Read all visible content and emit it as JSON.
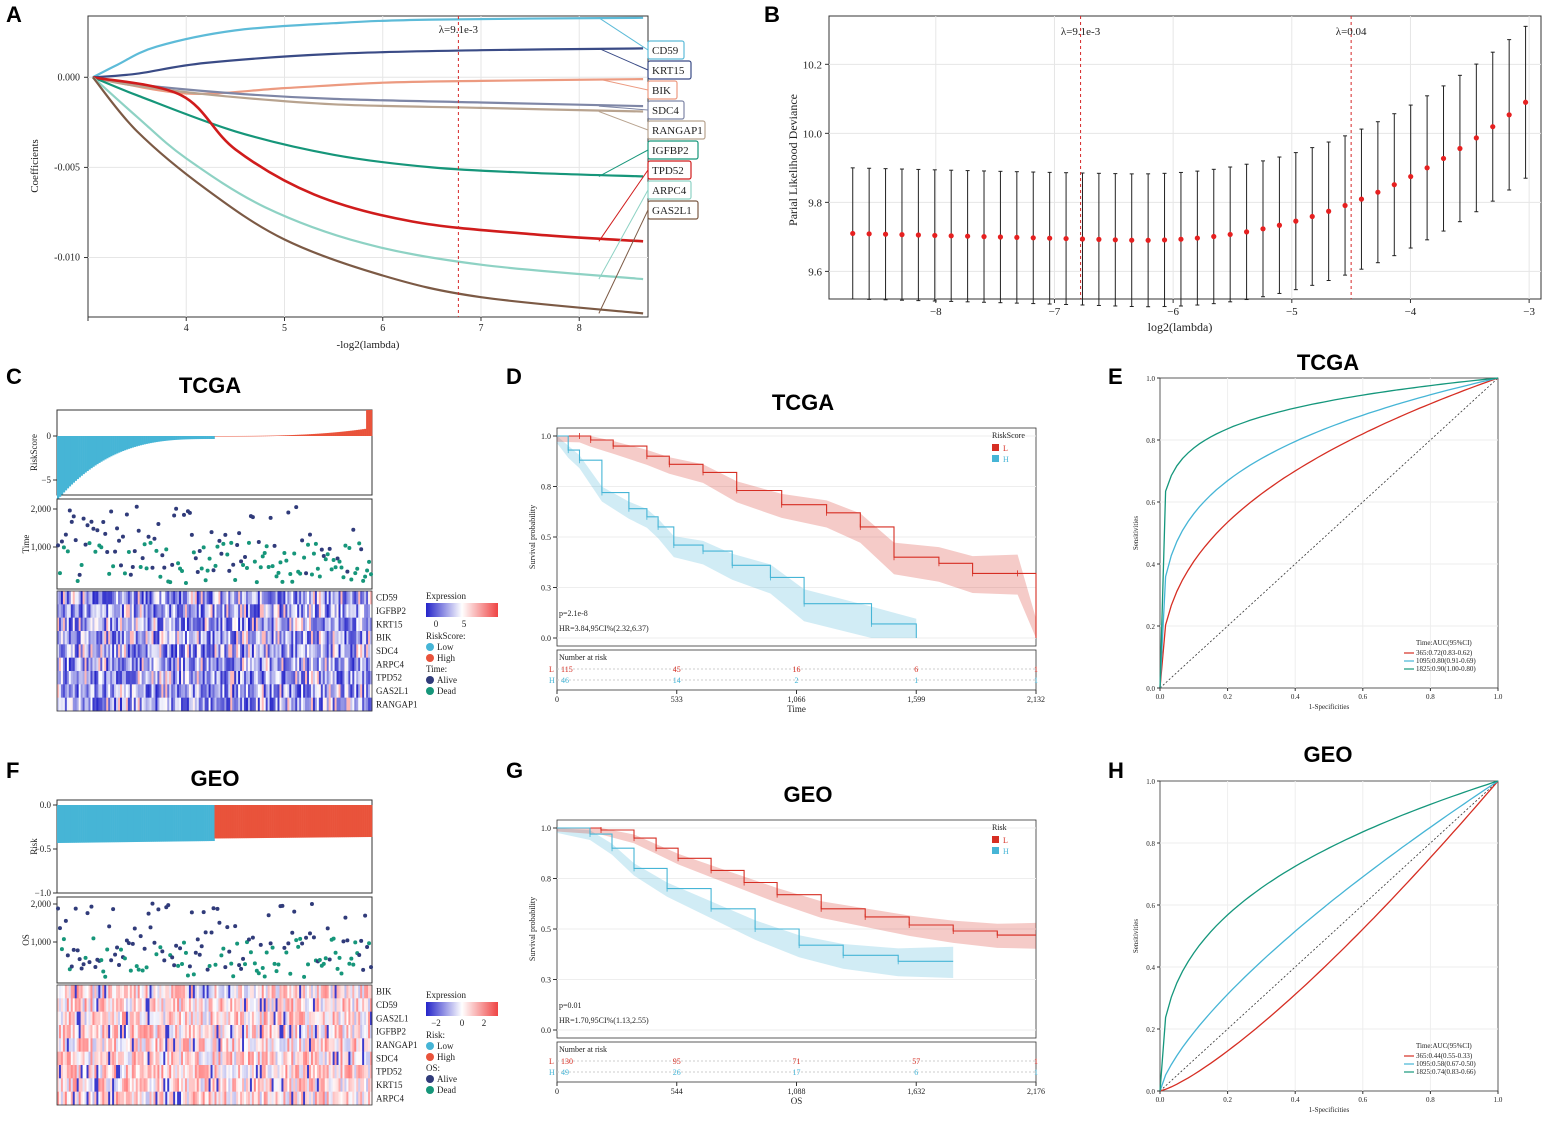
{
  "colors": {
    "red": "#d62e23",
    "blue": "#46b5d6",
    "teal": "#15977c",
    "navy": "#2a3f7d",
    "heatLow": "#2424c9",
    "heatHigh": "#ef4444",
    "lowRisk": "#46b5d6",
    "highRisk": "#e9533b",
    "alive": "#303b7a",
    "dead": "#16967a"
  },
  "panelA": {
    "letter": "A",
    "xlabel": "-log2(lambda)",
    "ylabel": "Coefficients",
    "vline_label": "λ=9.1e-3",
    "xticks": [
      "4",
      "5",
      "6",
      "7",
      "8"
    ],
    "yticks": [
      "0.000",
      "-0.005",
      "-0.010"
    ],
    "genes": [
      "CD59",
      "KRT15",
      "BIK",
      "SDC4",
      "RANGAP1",
      "IGFBP2",
      "TPD52",
      "ARPC4",
      "GAS2L1"
    ]
  },
  "panelB": {
    "letter": "B",
    "xlabel": "log2(lambda)",
    "ylabel": "Parial Likelihood Deviance",
    "vline1_label": "λ=9.1e-3",
    "vline2_label": "λ=0.04",
    "xticks": [
      "−8",
      "−7",
      "−6",
      "−5",
      "−4",
      "−3"
    ],
    "yticks": [
      "9.6",
      "9.8",
      "10.0",
      "10.2"
    ]
  },
  "panelC": {
    "letter": "C",
    "title": "TCGA",
    "risk_label": "RiskScore",
    "time_label": "Time",
    "risk_ticks": [
      "0",
      "−5"
    ],
    "time_ticks": [
      "2,000",
      "1,000"
    ],
    "genes": [
      "CD59",
      "IGFBP2",
      "KRT15",
      "BIK",
      "SDC4",
      "ARPC4",
      "TPD52",
      "GAS2L1",
      "RANGAP1"
    ],
    "legend": {
      "expression": "Expression",
      "scale": [
        "0",
        "5"
      ],
      "group_title": "RiskScore:",
      "group": [
        "Low",
        "High"
      ],
      "status_title": "Time:",
      "status": [
        "Alive",
        "Dead"
      ]
    }
  },
  "panelD": {
    "letter": "D",
    "title": "TCGA",
    "ylabel": "Survival probability",
    "xlabel": "Time",
    "legend_title": "RiskScore",
    "legend": [
      "L",
      "H"
    ],
    "pvalue": "p=2.1e-8",
    "hr": "HR=3.84,95CI%(2.32,6.37)",
    "yticks": [
      "1.0",
      "0.8",
      "0.5",
      "0.3",
      "0.0"
    ],
    "xticks": [
      "0",
      "533",
      "1,066",
      "1,599",
      "2,132"
    ],
    "risk_title": "Number at risk",
    "risk_rows": [
      {
        "label": "L",
        "values": [
          "115",
          "45",
          "16",
          "6",
          "1"
        ]
      },
      {
        "label": "H",
        "values": [
          "46",
          "14",
          "2",
          "1",
          "1"
        ]
      }
    ]
  },
  "panelE": {
    "letter": "E",
    "title": "TCGA",
    "xlabel": "1-Specificities",
    "ylabel": "Sensitivities",
    "ticks": [
      "0.0",
      "0.2",
      "0.4",
      "0.6",
      "0.8",
      "1.0"
    ],
    "legend_title": "Time:AUC(95%CI)",
    "legend": [
      "365:0.72(0.83-0.62)",
      "1095:0.80(0.91-0.69)",
      "1825:0.90(1.00-0.80)"
    ]
  },
  "panelF": {
    "letter": "F",
    "title": "GEO",
    "risk_label": "Risk",
    "time_label": "OS",
    "risk_ticks": [
      "0.0",
      "−0.5",
      "−1.0"
    ],
    "time_ticks": [
      "2,000",
      "1,000"
    ],
    "genes": [
      "BIK",
      "CD59",
      "GAS2L1",
      "IGFBP2",
      "RANGAP1",
      "SDC4",
      "TPD52",
      "KRT15",
      "ARPC4"
    ],
    "legend": {
      "expression": "Expression",
      "scale": [
        "−2",
        "0",
        "2"
      ],
      "group_title": "Risk:",
      "group": [
        "Low",
        "High"
      ],
      "status_title": "OS:",
      "status": [
        "Alive",
        "Dead"
      ]
    }
  },
  "panelG": {
    "letter": "G",
    "title": "GEO",
    "ylabel": "Survival probability",
    "xlabel": "OS",
    "legend_title": "Risk",
    "legend": [
      "L",
      "H"
    ],
    "pvalue": "p=0.01",
    "hr": "HR=1.70,95CI%(1.13,2.55)",
    "yticks": [
      "1.0",
      "0.8",
      "0.5",
      "0.3",
      "0.0"
    ],
    "xticks": [
      "0",
      "544",
      "1,088",
      "1,632",
      "2,176"
    ],
    "risk_title": "Number at risk",
    "risk_rows": [
      {
        "label": "L",
        "values": [
          "130",
          "95",
          "71",
          "57",
          "1"
        ]
      },
      {
        "label": "H",
        "values": [
          "49",
          "26",
          "17",
          "6",
          "1"
        ]
      }
    ]
  },
  "panelH": {
    "letter": "H",
    "title": "GEO",
    "xlabel": "1-Specificities",
    "ylabel": "Sensitivities",
    "ticks": [
      "0.0",
      "0.2",
      "0.4",
      "0.6",
      "0.8",
      "1.0"
    ],
    "legend_title": "Time:AUC(95%CI)",
    "legend": [
      "365:0.44(0.55-0.33)",
      "1095:0.58(0.67-0.50)",
      "1825:0.74(0.83-0.66)"
    ]
  },
  "chart_data": [
    {
      "panel": "A",
      "type": "line",
      "xlabel": "-log2(lambda)",
      "ylabel": "Coefficients",
      "xlim": [
        3,
        8.7
      ],
      "ylim": [
        -0.0133,
        0.0034
      ],
      "vline": 6.77,
      "series": [
        {
          "name": "CD59",
          "values": [
            [
              3.05,
              0
            ],
            [
              3.3,
              0.0007
            ],
            [
              3.7,
              0.0017
            ],
            [
              4.5,
              0.0026
            ],
            [
              5.5,
              0.003
            ],
            [
              6.5,
              0.0032
            ],
            [
              8.65,
              0.0033
            ]
          ]
        },
        {
          "name": "KRT15",
          "values": [
            [
              3.05,
              0
            ],
            [
              3.5,
              0.0002
            ],
            [
              4.2,
              0.0008
            ],
            [
              5.5,
              0.0013
            ],
            [
              7,
              0.0015
            ],
            [
              8.65,
              0.0016
            ]
          ]
        },
        {
          "name": "BIK",
          "values": [
            [
              3.05,
              0
            ],
            [
              4,
              -0.0009
            ],
            [
              5,
              -0.0006
            ],
            [
              6,
              -0.0003
            ],
            [
              7,
              -0.0002
            ],
            [
              8.65,
              -0.0001
            ]
          ]
        },
        {
          "name": "SDC4",
          "values": [
            [
              3.05,
              0
            ],
            [
              3.5,
              -0.0004
            ],
            [
              4.5,
              -0.0009
            ],
            [
              5.5,
              -0.0012
            ],
            [
              7,
              -0.0014
            ],
            [
              8.65,
              -0.0016
            ]
          ]
        },
        {
          "name": "RANGAP1",
          "values": [
            [
              3.05,
              0
            ],
            [
              3.4,
              -0.0004
            ],
            [
              4.3,
              -0.001
            ],
            [
              5.5,
              -0.0015
            ],
            [
              7,
              -0.0017
            ],
            [
              8.65,
              -0.0019
            ]
          ]
        },
        {
          "name": "IGFBP2",
          "values": [
            [
              3.05,
              0
            ],
            [
              3.5,
              -0.001
            ],
            [
              4.5,
              -0.003
            ],
            [
              5.5,
              -0.0043
            ],
            [
              6.5,
              -0.005
            ],
            [
              7.5,
              -0.0053
            ],
            [
              8.65,
              -0.0055
            ]
          ]
        },
        {
          "name": "TPD52",
          "values": [
            [
              3.05,
              0
            ],
            [
              3.95,
              -0.001
            ],
            [
              4.5,
              -0.004
            ],
            [
              5.3,
              -0.0065
            ],
            [
              6.3,
              -0.008
            ],
            [
              7.5,
              -0.0087
            ],
            [
              8.65,
              -0.0091
            ]
          ]
        },
        {
          "name": "ARPC4",
          "values": [
            [
              3.05,
              0
            ],
            [
              3.5,
              -0.0022
            ],
            [
              4,
              -0.0045
            ],
            [
              4.8,
              -0.0072
            ],
            [
              5.8,
              -0.0092
            ],
            [
              7,
              -0.0104
            ],
            [
              8.65,
              -0.0112
            ]
          ]
        },
        {
          "name": "GAS2L1",
          "values": [
            [
              3.05,
              0
            ],
            [
              3.5,
              -0.003
            ],
            [
              4.2,
              -0.0062
            ],
            [
              5,
              -0.009
            ],
            [
              6,
              -0.011
            ],
            [
              7,
              -0.0122
            ],
            [
              8.65,
              -0.0131
            ]
          ]
        }
      ]
    },
    {
      "panel": "B",
      "type": "scatter",
      "xlabel": "log2(lambda)",
      "ylabel": "Parial Likelihood Deviance",
      "xlim": [
        -8.9,
        -2.9
      ],
      "ylim": [
        9.52,
        10.34
      ],
      "vlines": [
        -6.78,
        -4.5
      ],
      "x_range": [
        -8.7,
        -3.03
      ],
      "points": 42,
      "mean_start": 9.71,
      "mean_min": 9.69,
      "mean_end": 10.09,
      "ci_halfwidth_start": 0.19,
      "ci_halfwidth_end": 0.22
    },
    {
      "panel": "D",
      "type": "line",
      "title": "TCGA",
      "xlabel": "Time",
      "ylabel": "Survival probability",
      "xlim": [
        0,
        2132
      ],
      "ylim": [
        0,
        1
      ],
      "series": [
        {
          "name": "L",
          "values": [
            [
              0,
              1
            ],
            [
              100,
              1
            ],
            [
              150,
              0.98
            ],
            [
              250,
              0.95
            ],
            [
              400,
              0.9
            ],
            [
              500,
              0.86
            ],
            [
              650,
              0.82
            ],
            [
              800,
              0.73
            ],
            [
              1000,
              0.66
            ],
            [
              1200,
              0.62
            ],
            [
              1350,
              0.55
            ],
            [
              1500,
              0.4
            ],
            [
              1700,
              0.37
            ],
            [
              1850,
              0.32
            ],
            [
              2050,
              0.32
            ],
            [
              2132,
              0
            ]
          ]
        },
        {
          "name": "H",
          "values": [
            [
              0,
              1
            ],
            [
              50,
              0.93
            ],
            [
              100,
              0.88
            ],
            [
              200,
              0.72
            ],
            [
              320,
              0.64
            ],
            [
              400,
              0.6
            ],
            [
              450,
              0.55
            ],
            [
              520,
              0.46
            ],
            [
              650,
              0.43
            ],
            [
              780,
              0.36
            ],
            [
              950,
              0.3
            ],
            [
              1100,
              0.17
            ],
            [
              1400,
              0.07
            ],
            [
              1599,
              0
            ]
          ]
        }
      ]
    },
    {
      "panel": "E",
      "type": "line",
      "title": "TCGA",
      "xlabel": "1-Specificities",
      "ylabel": "Sensitivities",
      "xlim": [
        0,
        1
      ],
      "ylim": [
        0,
        1
      ],
      "series": [
        {
          "name": "365",
          "auc": 0.72
        },
        {
          "name": "1095",
          "auc": 0.8
        },
        {
          "name": "1825",
          "auc": 0.9
        }
      ]
    },
    {
      "panel": "G",
      "type": "line",
      "title": "GEO",
      "xlabel": "OS",
      "ylabel": "Survival probability",
      "xlim": [
        0,
        2176
      ],
      "ylim": [
        0,
        1
      ],
      "series": [
        {
          "name": "L",
          "values": [
            [
              0,
              1
            ],
            [
              200,
              0.99
            ],
            [
              350,
              0.95
            ],
            [
              450,
              0.9
            ],
            [
              550,
              0.85
            ],
            [
              700,
              0.79
            ],
            [
              850,
              0.73
            ],
            [
              1000,
              0.67
            ],
            [
              1200,
              0.6
            ],
            [
              1400,
              0.56
            ],
            [
              1600,
              0.52
            ],
            [
              1800,
              0.49
            ],
            [
              2000,
              0.47
            ],
            [
              2176,
              0.47
            ]
          ]
        },
        {
          "name": "H",
          "values": [
            [
              0,
              1
            ],
            [
              150,
              0.97
            ],
            [
              250,
              0.9
            ],
            [
              350,
              0.8
            ],
            [
              500,
              0.7
            ],
            [
              700,
              0.6
            ],
            [
              900,
              0.5
            ],
            [
              1100,
              0.42
            ],
            [
              1300,
              0.37
            ],
            [
              1550,
              0.34
            ],
            [
              1800,
              0.34
            ]
          ]
        }
      ]
    },
    {
      "panel": "H",
      "type": "line",
      "title": "GEO",
      "xlabel": "1-Specificities",
      "ylabel": "Sensitivities",
      "xlim": [
        0,
        1
      ],
      "ylim": [
        0,
        1
      ],
      "series": [
        {
          "name": "365",
          "auc": 0.44
        },
        {
          "name": "1095",
          "auc": 0.58
        },
        {
          "name": "1825",
          "auc": 0.74
        }
      ]
    }
  ]
}
